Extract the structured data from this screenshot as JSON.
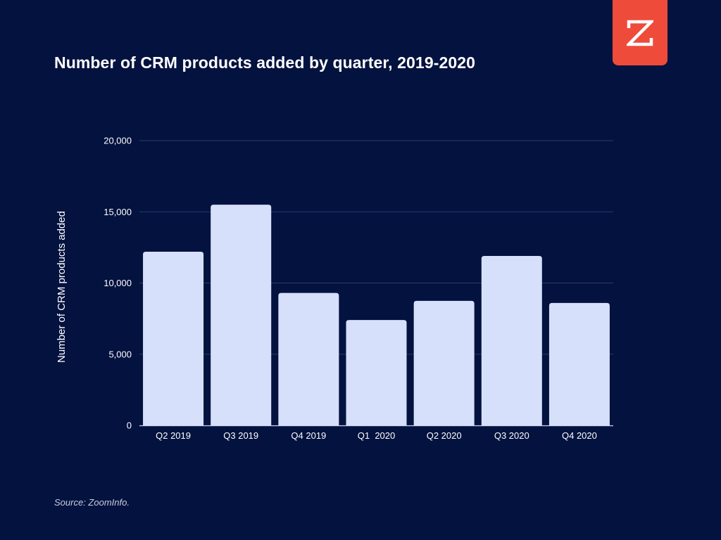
{
  "chart_data": {
    "type": "bar",
    "title": "Number of CRM products added by quarter, 2019-2020",
    "xlabel": "",
    "ylabel": "Number of CRM products added",
    "categories": [
      "Q2 2019",
      "Q3 2019",
      "Q4 2019",
      "Q1  2020",
      "Q2 2020",
      "Q3 2020",
      "Q4 2020"
    ],
    "values": [
      12200,
      15500,
      9300,
      7400,
      8750,
      11900,
      8600
    ],
    "ylim": [
      0,
      20000
    ],
    "yticks": [
      0,
      5000,
      10000,
      15000,
      20000
    ],
    "ytick_labels": [
      "0",
      "5,000",
      "10,000",
      "15,000",
      "20,000"
    ],
    "grid": true,
    "legend": "none"
  },
  "source": "Source: ZoomInfo.",
  "logo": {
    "icon": "zoominfo-z-icon"
  },
  "colors": {
    "background": "#03123f",
    "bar": "#d7e0fb",
    "gridline": "#2b3a68",
    "axis": "#c9d1ee",
    "text": "#ffffff",
    "logo": "#ef4b3b"
  }
}
